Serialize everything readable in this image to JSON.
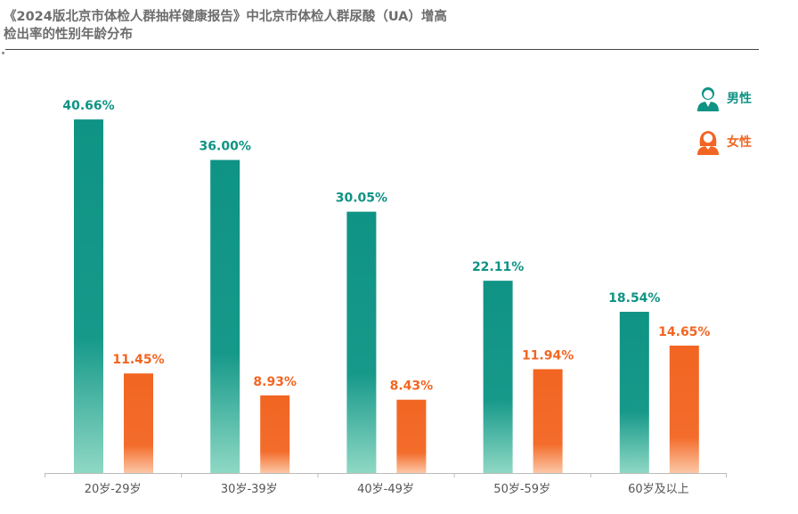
{
  "title_line1": "《2024版北京市体检人群抽样健康报告》中北京市体检人群尿酸（UA）增高",
  "title_line2": "检出率的性别年龄分布",
  "colors": {
    "male": "#0f9384",
    "female": "#f26522",
    "axis": "#bbbbbb",
    "tick_text": "#555555"
  },
  "legend": {
    "male": {
      "label": "男性",
      "icon": "male-person-icon"
    },
    "female": {
      "label": "女性",
      "icon": "female-person-icon"
    }
  },
  "chart_data": {
    "type": "bar",
    "title": "《2024版北京市体检人群抽样健康报告》中北京市体检人群尿酸（UA）增高检出率的性别年龄分布",
    "categories": [
      "20岁-29岁",
      "30岁-39岁",
      "40岁-49岁",
      "50岁-59岁",
      "60岁及以上"
    ],
    "series": [
      {
        "name": "男性",
        "values": [
          40.66,
          36.0,
          30.05,
          22.11,
          18.54
        ],
        "labels": [
          "40.66%",
          "36.00%",
          "30.05%",
          "22.11%",
          "18.54%"
        ]
      },
      {
        "name": "女性",
        "values": [
          11.45,
          8.93,
          8.43,
          11.94,
          14.65
        ],
        "labels": [
          "11.45%",
          "8.93%",
          "8.43%",
          "11.94%",
          "14.65%"
        ]
      }
    ],
    "ylim": [
      0,
      42
    ],
    "unit": "%",
    "legend_position": "top-right",
    "grid": false
  }
}
